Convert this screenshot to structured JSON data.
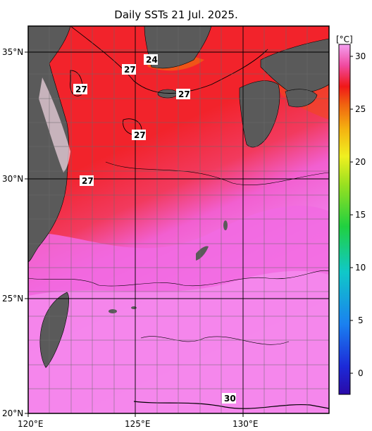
{
  "title": "Daily SSTs 21 Jul. 2025.",
  "lat_labels": [
    "35°N",
    "30°N",
    "25°N",
    "20°N"
  ],
  "lon_labels": [
    "120°E",
    "125°E",
    "130°E"
  ],
  "contour_labels": [
    "24",
    "27",
    "27",
    "27",
    "27",
    "27",
    "30"
  ],
  "colorbar": {
    "unit": "[°C]",
    "ticks": [
      "30",
      "25",
      "20",
      "15",
      "10",
      "5",
      "0"
    ]
  },
  "colors": {
    "land": "#5a5a5a",
    "sea_red": "#f2222a",
    "sea_pink": "#f266e6",
    "sea_lightpink": "#f59af0"
  }
}
